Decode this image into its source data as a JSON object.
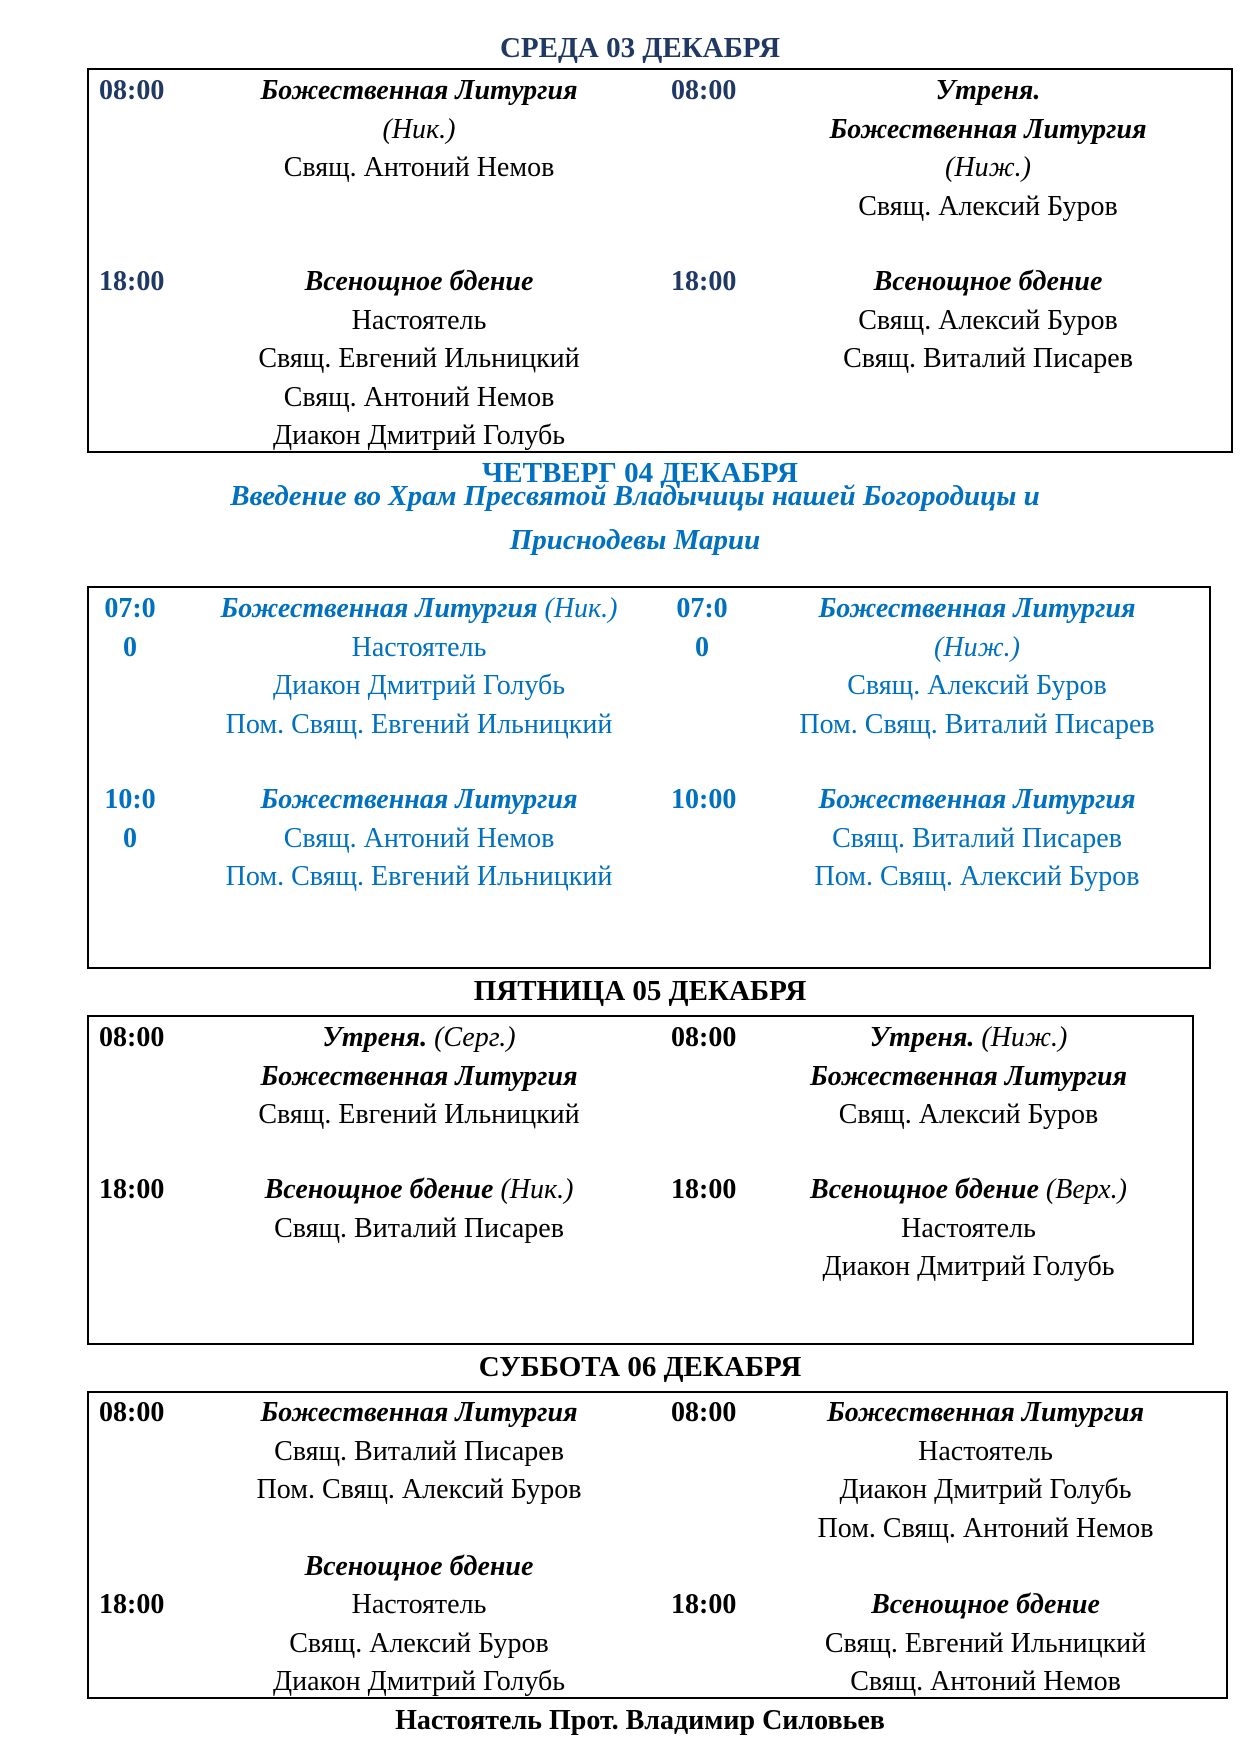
{
  "colors": {
    "navy": "#1f3864",
    "blue": "#0070c0",
    "black": "#000000"
  },
  "days": [
    {
      "title": "СРЕДА 03 ДЕКАБРЯ",
      "color": "#1f3864",
      "rows": [
        [
          {
            "time": "08:00",
            "lines": [
              {
                "text": "Божественная Литургия",
                "italic": true
              },
              {
                "text": "",
                "suffix": "(Ник.)"
              },
              {
                "text": "Свящ. Антоний Немов"
              }
            ]
          },
          {
            "time": "08:00",
            "lines": [
              {
                "text": "Утреня.",
                "italic": true
              },
              {
                "text": "Божественная Литургия",
                "italic": true
              },
              {
                "text": "",
                "suffix": "(Ниж.)"
              },
              {
                "text": "Свящ. Алексий Буров"
              }
            ]
          }
        ],
        [
          {
            "time": "18:00",
            "lines": [
              {
                "text": "Всенощное бдение",
                "italic": true
              },
              {
                "text": "Настоятель"
              },
              {
                "text": "Свящ. Евгений Ильницкий"
              },
              {
                "text": "Свящ. Антоний Немов"
              },
              {
                "text": "Диакон Дмитрий Голубь"
              }
            ]
          },
          {
            "time": "18:00",
            "lines": [
              {
                "text": "Всенощное бдение",
                "italic": true
              },
              {
                "text": "Свящ. Алексий Буров"
              },
              {
                "text": "Свящ. Виталий Писарев"
              }
            ]
          }
        ]
      ]
    },
    {
      "title": "ЧЕТВЕРГ 04 ДЕКАБРЯ",
      "color": "#0070c0",
      "feast": [
        "Введение во Храм Пресвятой Владычицы нашей Богородицы и",
        "Приснодевы Марии"
      ],
      "rows": [
        [
          {
            "time": "07:00",
            "lines": [
              {
                "text": "Божественная Литургия",
                "italic": true,
                "suffix": " (Ник.)"
              },
              {
                "text": "Настоятель"
              },
              {
                "text": "Диакон Дмитрий Голубь"
              },
              {
                "text": "Пом. Свящ. Евгений Ильницкий"
              }
            ]
          },
          {
            "time": "07:00",
            "lines": [
              {
                "text": "Божественная Литургия",
                "italic": true
              },
              {
                "text": "",
                "suffix": "(Ниж.)"
              },
              {
                "text": "Свящ. Алексий Буров"
              },
              {
                "text": "Пом. Свящ. Виталий Писарев"
              }
            ]
          }
        ],
        [
          {
            "time": "10:00",
            "lines": [
              {
                "text": "Божественная Литургия",
                "italic": true
              },
              {
                "text": "Свящ. Антоний Немов"
              },
              {
                "text": "Пом. Свящ. Евгений Ильницкий"
              }
            ]
          },
          {
            "time": "10:00",
            "lines": [
              {
                "text": "Божественная Литургия",
                "italic": true
              },
              {
                "text": "Свящ. Виталий Писарев"
              },
              {
                "text": "Пом. Свящ. Алексий Буров"
              }
            ]
          }
        ]
      ]
    },
    {
      "title": "ПЯТНИЦА  05 ДЕКАБРЯ",
      "color": "#000000",
      "rows": [
        [
          {
            "time": "08:00",
            "lines": [
              {
                "text": "Утреня.",
                "italic": true,
                "suffix": " (Серг.)"
              },
              {
                "text": "Божественная Литургия",
                "italic": true
              },
              {
                "text": "Свящ. Евгений Ильницкий"
              }
            ]
          },
          {
            "time": "08:00",
            "lines": [
              {
                "text": "Утреня.",
                "italic": true,
                "suffix": " (Ниж.)"
              },
              {
                "text": "Божественная Литургия",
                "italic": true
              },
              {
                "text": "Свящ. Алексий Буров"
              }
            ]
          }
        ],
        [
          {
            "time": "18:00",
            "lines": [
              {
                "text": "Всенощное бдение",
                "italic": true,
                "suffix": " (Ник.)"
              },
              {
                "text": "Свящ. Виталий Писарев"
              }
            ]
          },
          {
            "time": "18:00",
            "lines": [
              {
                "text": "Всенощное бдение",
                "italic": true,
                "suffix": " (Верх.)"
              },
              {
                "text": "Настоятель"
              },
              {
                "text": "Диакон Дмитрий Голубь"
              }
            ]
          }
        ]
      ]
    },
    {
      "title": "СУББОТА 06 ДЕКАБРЯ",
      "color": "#000000",
      "rows": [
        [
          {
            "time": "08:00",
            "lines": [
              {
                "text": "Божественная Литургия",
                "italic": true
              },
              {
                "text": "Свящ. Виталий Писарев"
              },
              {
                "text": "Пом. Свящ. Алексий Буров"
              }
            ]
          },
          {
            "time": "08:00",
            "lines": [
              {
                "text": "Божественная Литургия",
                "italic": true
              },
              {
                "text": "Настоятель"
              },
              {
                "text": "Диакон Дмитрий Голубь"
              },
              {
                "text": "Пом. Свящ. Антоний Немов"
              }
            ]
          }
        ],
        [
          {
            "time": "18:00",
            "lines": [
              {
                "text": "Всенощное бдение",
                "italic": true
              },
              {
                "text": "Настоятель"
              },
              {
                "text": "Свящ. Алексий Буров"
              },
              {
                "text": "Диакон Дмитрий Голубь"
              }
            ]
          },
          {
            "time": "18:00",
            "lines": [
              {
                "text": "Всенощное бдение",
                "italic": true
              },
              {
                "text": "Свящ. Евгений Ильницкий"
              },
              {
                "text": "Свящ. Антоний Немов"
              }
            ]
          }
        ]
      ]
    }
  ],
  "footer": "Настоятель Прот. Владимир Силовьев"
}
